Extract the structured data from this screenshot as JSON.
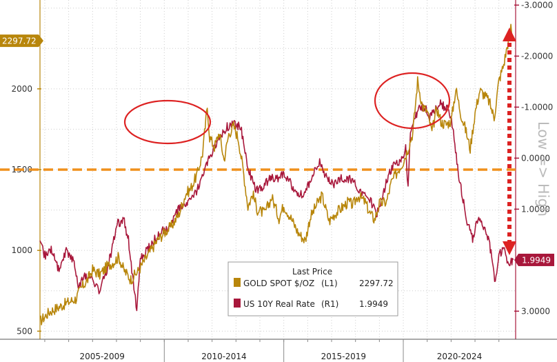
{
  "chart_data": {
    "type": "line",
    "title": "",
    "x_range": [
      2004.8,
      2024.7
    ],
    "period_labels": [
      "2005-2009",
      "2010-2014",
      "2015-2019",
      "2020-2024"
    ],
    "left_axis": {
      "ticks": [
        "500",
        "1000",
        "1500",
        "2000"
      ],
      "range": [
        450,
        2550
      ]
    },
    "right_axis": {
      "ticks": [
        "-3.0000",
        "-2.0000",
        "-1.0000",
        "0.0000",
        "1.0000",
        "3.0000"
      ],
      "range": [
        -3.1,
        3.55
      ],
      "inverted": true,
      "label": "Low => High"
    },
    "reference_line": {
      "axis": "left",
      "value": 1500,
      "color": "#f0901c"
    },
    "last_price_badges": [
      {
        "series": "gold",
        "text": "2297.72",
        "color": "#b8860b"
      },
      {
        "series": "rate",
        "text": "1.9949",
        "color": "#a8173b"
      }
    ],
    "legend": {
      "header": "Last Price",
      "entries": [
        {
          "name": "GOLD SPOT $/OZ",
          "axis_tag": "(L1)",
          "value": "2297.72",
          "color": "#b8860b"
        },
        {
          "name": "US 10Y Real Rate",
          "axis_tag": "(R1)",
          "value": "1.9949",
          "color": "#a8173b"
        }
      ]
    },
    "series": [
      {
        "id": "gold",
        "axis": "left",
        "color": "#b8860b",
        "points": [
          [
            2004.8,
            560
          ],
          [
            2005.2,
            620
          ],
          [
            2005.6,
            650
          ],
          [
            2006.0,
            680
          ],
          [
            2006.3,
            700
          ],
          [
            2006.5,
            760
          ],
          [
            2006.8,
            820
          ],
          [
            2007.0,
            880
          ],
          [
            2007.3,
            850
          ],
          [
            2007.6,
            900
          ],
          [
            2007.9,
            930
          ],
          [
            2008.1,
            960
          ],
          [
            2008.3,
            880
          ],
          [
            2008.6,
            820
          ],
          [
            2008.9,
            870
          ],
          [
            2009.1,
            920
          ],
          [
            2009.4,
            990
          ],
          [
            2009.7,
            1060
          ],
          [
            2010.0,
            1110
          ],
          [
            2010.3,
            1150
          ],
          [
            2010.6,
            1220
          ],
          [
            2010.9,
            1350
          ],
          [
            2011.1,
            1380
          ],
          [
            2011.4,
            1480
          ],
          [
            2011.6,
            1600
          ],
          [
            2011.8,
            1890
          ],
          [
            2011.9,
            1700
          ],
          [
            2012.1,
            1640
          ],
          [
            2012.3,
            1730
          ],
          [
            2012.5,
            1560
          ],
          [
            2012.7,
            1720
          ],
          [
            2012.9,
            1770
          ],
          [
            2013.1,
            1690
          ],
          [
            2013.3,
            1500
          ],
          [
            2013.5,
            1270
          ],
          [
            2013.7,
            1350
          ],
          [
            2013.9,
            1250
          ],
          [
            2014.2,
            1230
          ],
          [
            2014.5,
            1330
          ],
          [
            2014.8,
            1200
          ],
          [
            2015.0,
            1280
          ],
          [
            2015.3,
            1200
          ],
          [
            2015.6,
            1110
          ],
          [
            2015.9,
            1060
          ],
          [
            2016.1,
            1200
          ],
          [
            2016.4,
            1290
          ],
          [
            2016.6,
            1340
          ],
          [
            2016.9,
            1180
          ],
          [
            2017.1,
            1220
          ],
          [
            2017.4,
            1260
          ],
          [
            2017.7,
            1300
          ],
          [
            2017.9,
            1280
          ],
          [
            2018.1,
            1340
          ],
          [
            2018.4,
            1300
          ],
          [
            2018.6,
            1230
          ],
          [
            2018.8,
            1190
          ],
          [
            2019.0,
            1290
          ],
          [
            2019.3,
            1300
          ],
          [
            2019.5,
            1420
          ],
          [
            2019.8,
            1500
          ],
          [
            2020.0,
            1550
          ],
          [
            2020.2,
            1630
          ],
          [
            2020.4,
            1730
          ],
          [
            2020.6,
            2050
          ],
          [
            2020.8,
            1890
          ],
          [
            2021.0,
            1860
          ],
          [
            2021.2,
            1730
          ],
          [
            2021.4,
            1880
          ],
          [
            2021.6,
            1790
          ],
          [
            2021.8,
            1780
          ],
          [
            2022.0,
            1800
          ],
          [
            2022.2,
            2000
          ],
          [
            2022.4,
            1850
          ],
          [
            2022.6,
            1750
          ],
          [
            2022.8,
            1630
          ],
          [
            2023.0,
            1850
          ],
          [
            2023.2,
            1990
          ],
          [
            2023.4,
            1960
          ],
          [
            2023.6,
            1920
          ],
          [
            2023.8,
            1820
          ],
          [
            2024.0,
            2050
          ],
          [
            2024.2,
            2150
          ],
          [
            2024.4,
            2300
          ],
          [
            2024.5,
            2380
          ],
          [
            2024.6,
            2297.72
          ]
        ]
      },
      {
        "id": "rate",
        "axis": "right",
        "color": "#a8173b",
        "points": [
          [
            2004.8,
            1.7
          ],
          [
            2005.0,
            1.9
          ],
          [
            2005.3,
            1.8
          ],
          [
            2005.6,
            2.2
          ],
          [
            2005.9,
            1.8
          ],
          [
            2006.2,
            2.0
          ],
          [
            2006.4,
            2.5
          ],
          [
            2006.7,
            2.3
          ],
          [
            2007.0,
            2.4
          ],
          [
            2007.3,
            2.6
          ],
          [
            2007.6,
            2.2
          ],
          [
            2007.8,
            1.8
          ],
          [
            2008.0,
            1.3
          ],
          [
            2008.3,
            1.2
          ],
          [
            2008.5,
            1.6
          ],
          [
            2008.7,
            2.4
          ],
          [
            2008.85,
            3.0
          ],
          [
            2009.0,
            2.0
          ],
          [
            2009.3,
            1.8
          ],
          [
            2009.6,
            1.6
          ],
          [
            2010.0,
            1.4
          ],
          [
            2010.3,
            1.3
          ],
          [
            2010.6,
            1.0
          ],
          [
            2010.9,
            0.9
          ],
          [
            2011.2,
            0.8
          ],
          [
            2011.5,
            0.5
          ],
          [
            2011.8,
            0.1
          ],
          [
            2012.0,
            -0.1
          ],
          [
            2012.3,
            -0.4
          ],
          [
            2012.6,
            -0.6
          ],
          [
            2012.9,
            -0.7
          ],
          [
            2013.2,
            -0.6
          ],
          [
            2013.5,
            0.2
          ],
          [
            2013.8,
            0.6
          ],
          [
            2014.1,
            0.6
          ],
          [
            2014.4,
            0.4
          ],
          [
            2014.7,
            0.4
          ],
          [
            2015.0,
            0.3
          ],
          [
            2015.3,
            0.5
          ],
          [
            2015.6,
            0.7
          ],
          [
            2015.9,
            0.7
          ],
          [
            2016.2,
            0.3
          ],
          [
            2016.5,
            0.1
          ],
          [
            2016.8,
            0.4
          ],
          [
            2017.1,
            0.5
          ],
          [
            2017.4,
            0.4
          ],
          [
            2017.7,
            0.4
          ],
          [
            2018.0,
            0.5
          ],
          [
            2018.3,
            0.7
          ],
          [
            2018.6,
            0.8
          ],
          [
            2018.9,
            1.1
          ],
          [
            2019.1,
            0.8
          ],
          [
            2019.4,
            0.3
          ],
          [
            2019.7,
            0.1
          ],
          [
            2019.9,
            0.1
          ],
          [
            2020.1,
            -0.2
          ],
          [
            2020.2,
            0.6
          ],
          [
            2020.3,
            -0.5
          ],
          [
            2020.5,
            -0.8
          ],
          [
            2020.7,
            -1.0
          ],
          [
            2020.9,
            -1.0
          ],
          [
            2021.1,
            -0.8
          ],
          [
            2021.3,
            -0.9
          ],
          [
            2021.5,
            -1.1
          ],
          [
            2021.7,
            -1.0
          ],
          [
            2021.9,
            -1.0
          ],
          [
            2022.1,
            -0.5
          ],
          [
            2022.3,
            0.3
          ],
          [
            2022.5,
            0.8
          ],
          [
            2022.7,
            1.3
          ],
          [
            2022.9,
            1.6
          ],
          [
            2023.1,
            1.2
          ],
          [
            2023.3,
            1.3
          ],
          [
            2023.5,
            1.5
          ],
          [
            2023.7,
            1.9
          ],
          [
            2023.85,
            2.5
          ],
          [
            2024.0,
            1.9
          ],
          [
            2024.2,
            1.8
          ],
          [
            2024.4,
            2.1
          ],
          [
            2024.6,
            1.9949
          ]
        ]
      }
    ]
  }
}
